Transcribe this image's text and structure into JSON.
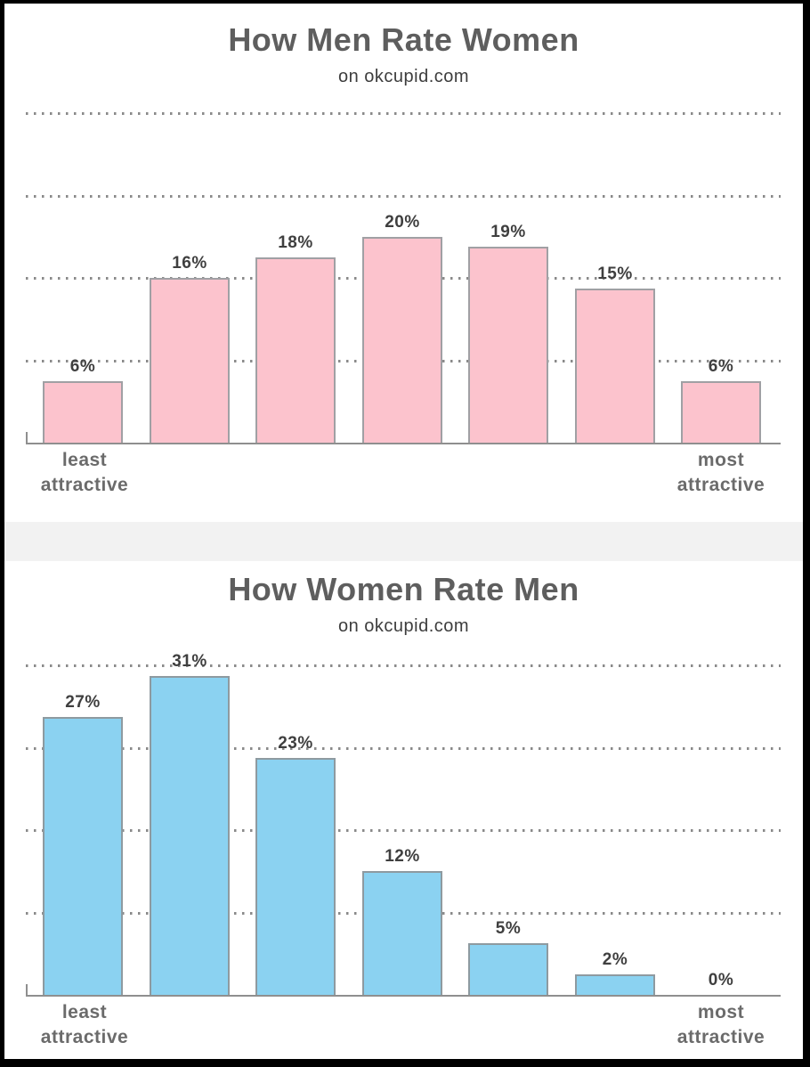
{
  "frame": {
    "border_color": "#000000",
    "background_color": "#ffffff",
    "divider_color": "#f2f2f2"
  },
  "style_colors": {
    "title": "#5e5e5e",
    "subtitle": "#3d3d3d",
    "value_label": "#3f3f3f",
    "axis_label": "#6b6b6b",
    "grid_dots": "#8a8a8a",
    "axis_line": "#8f8f8f"
  },
  "chart_data": [
    {
      "type": "bar",
      "title": "How Men Rate Women",
      "subtitle": "on okcupid.com",
      "categories": [
        "least attractive",
        "",
        "",
        "",
        "",
        "",
        "most attractive"
      ],
      "values": [
        6,
        16,
        18,
        20,
        19,
        15,
        6
      ],
      "value_labels": [
        "6%",
        "16%",
        "18%",
        "20%",
        "19%",
        "15%",
        "6%"
      ],
      "x_left_lines": [
        "least",
        "attractive"
      ],
      "x_right_lines": [
        "most",
        "attractive"
      ],
      "bar_fill": "#fcc3cd",
      "bar_stroke": "#a0a0a4",
      "gridlines": [
        8,
        16,
        24,
        32
      ],
      "ylim": [
        0,
        34
      ],
      "grid_style": "dotted",
      "legend_position": "none",
      "xlabel": "",
      "ylabel": ""
    },
    {
      "type": "bar",
      "title": "How Women Rate Men",
      "subtitle": "on okcupid.com",
      "categories": [
        "least attractive",
        "",
        "",
        "",
        "",
        "",
        "most attractive"
      ],
      "values": [
        27,
        31,
        23,
        12,
        5,
        2,
        0
      ],
      "value_labels": [
        "27%",
        "31%",
        "23%",
        "12%",
        "5%",
        "2%",
        "0%"
      ],
      "x_left_lines": [
        "least",
        "attractive"
      ],
      "x_right_lines": [
        "most",
        "attractive"
      ],
      "bar_fill": "#8bd2f1",
      "bar_stroke": "#8e9aa0",
      "gridlines": [
        8,
        16,
        24,
        32
      ],
      "ylim": [
        0,
        34
      ],
      "grid_style": "dotted",
      "legend_position": "none",
      "xlabel": "",
      "ylabel": ""
    }
  ]
}
